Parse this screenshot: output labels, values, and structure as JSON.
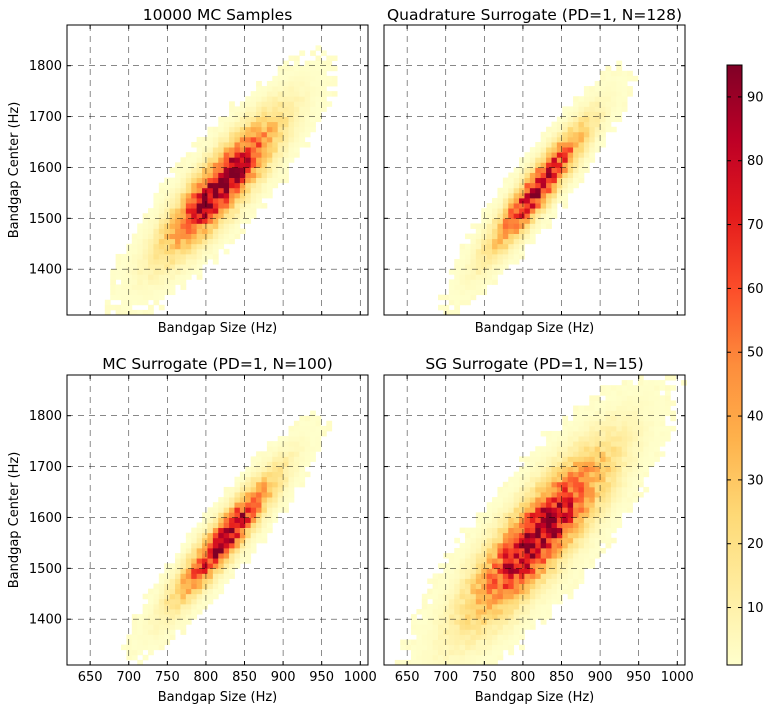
{
  "chart_data": [
    {
      "type": "heatmap",
      "title": "10000 MC Samples",
      "xlabel": "Bandgap Size (Hz)",
      "ylabel": "Bandgap Center (Hz)",
      "xlim": [
        620,
        1010
      ],
      "ylim": [
        1310,
        1880
      ],
      "xticks": [
        650,
        700,
        750,
        800,
        850,
        900,
        950,
        1000
      ],
      "yticks": [
        1400,
        1500,
        1600,
        1700,
        1800
      ],
      "show_xticklabels": false,
      "show_yticklabels": true,
      "grid": true,
      "distribution": {
        "mean_x": 820,
        "mean_y": 1565,
        "sd_x": 45,
        "sd_y": 80,
        "correlation": 0.86,
        "peak_count": 95
      },
      "samples": 10000
    },
    {
      "type": "heatmap",
      "title": "Quadrature Surrogate (PD=1, N=128)",
      "xlabel": "Bandgap Size (Hz)",
      "ylabel": "",
      "xlim": [
        620,
        1010
      ],
      "ylim": [
        1310,
        1880
      ],
      "xticks": [
        650,
        700,
        750,
        800,
        850,
        900,
        950,
        1000
      ],
      "yticks": [
        1400,
        1500,
        1600,
        1700,
        1800
      ],
      "show_xticklabels": false,
      "show_yticklabels": false,
      "grid": true,
      "distribution": {
        "mean_x": 820,
        "mean_y": 1560,
        "sd_x": 38,
        "sd_y": 75,
        "correlation": 0.92,
        "peak_count": 88
      }
    },
    {
      "type": "heatmap",
      "title": "MC Surrogate (PD=1, N=100)",
      "xlabel": "Bandgap Size (Hz)",
      "ylabel": "Bandgap Center (Hz)",
      "xlim": [
        620,
        1010
      ],
      "ylim": [
        1310,
        1880
      ],
      "xticks": [
        650,
        700,
        750,
        800,
        850,
        900,
        950,
        1000
      ],
      "yticks": [
        1400,
        1500,
        1600,
        1700,
        1800
      ],
      "show_xticklabels": true,
      "show_yticklabels": true,
      "grid": true,
      "distribution": {
        "mean_x": 825,
        "mean_y": 1560,
        "sd_x": 40,
        "sd_y": 75,
        "correlation": 0.92,
        "peak_count": 90
      }
    },
    {
      "type": "heatmap",
      "title": "SG Surrogate (PD=1, N=15)",
      "xlabel": "Bandgap Size (Hz)",
      "ylabel": "",
      "xlim": [
        620,
        1010
      ],
      "ylim": [
        1310,
        1880
      ],
      "xticks": [
        650,
        700,
        750,
        800,
        850,
        900,
        950,
        1000
      ],
      "yticks": [
        1400,
        1500,
        1600,
        1700,
        1800
      ],
      "show_xticklabels": true,
      "show_yticklabels": false,
      "grid": true,
      "distribution": {
        "mean_x": 820,
        "mean_y": 1565,
        "sd_x": 55,
        "sd_y": 100,
        "correlation": 0.84,
        "peak_count": 92
      }
    }
  ],
  "colorbar": {
    "colormap": "YlOrRd",
    "min": 1,
    "max": 95,
    "ticks": [
      10,
      20,
      30,
      40,
      50,
      60,
      70,
      80,
      90
    ],
    "colors": [
      "#ffffcc",
      "#ffeda0",
      "#fed976",
      "#feb24c",
      "#fd8d3c",
      "#fc4e2a",
      "#e31a1c",
      "#bd0026",
      "#800026"
    ]
  }
}
